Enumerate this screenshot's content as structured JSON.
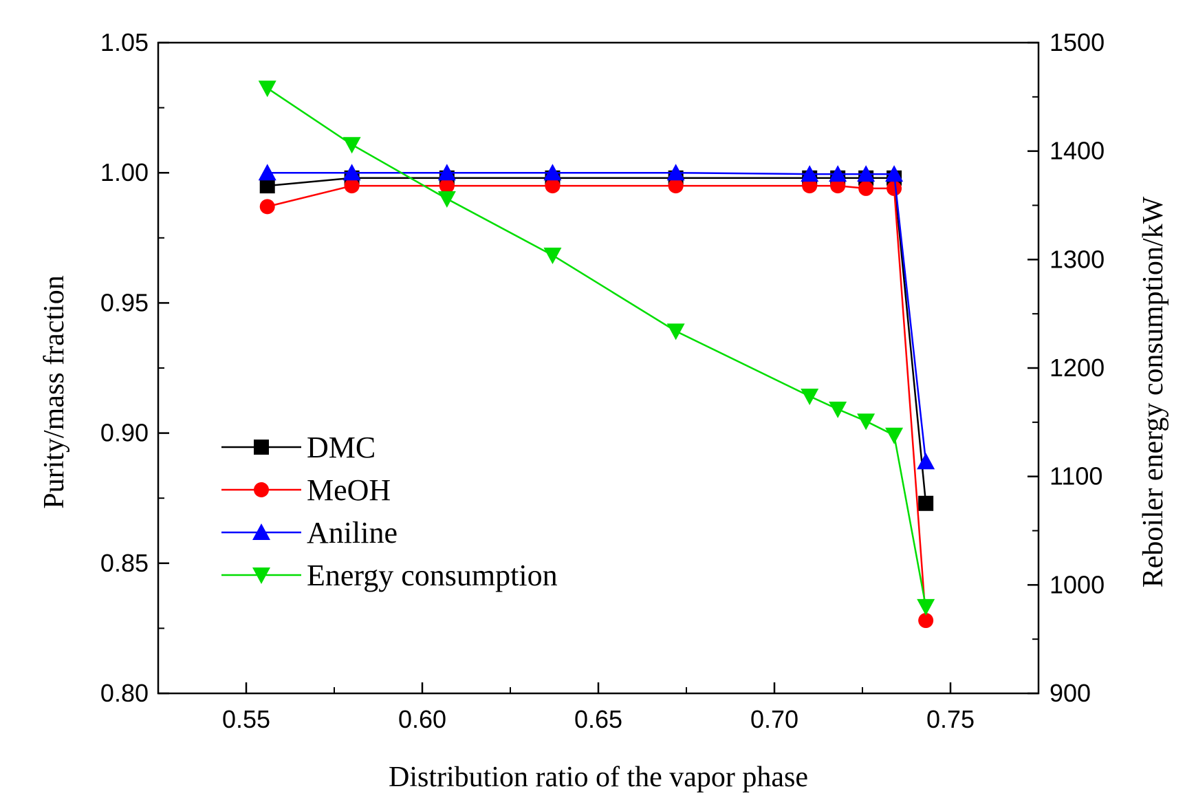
{
  "chart_data": {
    "type": "line",
    "title": "",
    "xlabel": "Distribution ratio of the vapor phase",
    "ylabel": "Purity/mass fraction",
    "y2label": "Reboiler energy consumption/kW",
    "xlim": [
      0.525,
      0.775
    ],
    "ylim": [
      0.8,
      1.05
    ],
    "y2lim": [
      900,
      1500
    ],
    "x_ticks": [
      0.55,
      0.6,
      0.65,
      0.7,
      0.75
    ],
    "x_tick_labels": [
      "0.55",
      "0.60",
      "0.65",
      "0.70",
      "0.75"
    ],
    "y_ticks": [
      0.8,
      0.85,
      0.9,
      0.95,
      1.0,
      1.05
    ],
    "y_tick_labels": [
      "0.80",
      "0.85",
      "0.90",
      "0.95",
      "1.00",
      "1.05"
    ],
    "y2_ticks": [
      900,
      1000,
      1100,
      1200,
      1300,
      1400,
      1500
    ],
    "y2_tick_labels": [
      "900",
      "1000",
      "1100",
      "1200",
      "1300",
      "1400",
      "1500"
    ],
    "grid": false,
    "legend_position": "bottom-left",
    "series": [
      {
        "name": "DMC",
        "axis": "left",
        "color": "#000000",
        "marker": "square",
        "x": [
          0.556,
          0.58,
          0.607,
          0.637,
          0.672,
          0.71,
          0.718,
          0.726,
          0.734,
          0.743
        ],
        "y": [
          0.995,
          0.998,
          0.998,
          0.998,
          0.998,
          0.998,
          0.998,
          0.998,
          0.998,
          0.873
        ]
      },
      {
        "name": "MeOH",
        "axis": "left",
        "color": "#ff0000",
        "marker": "circle",
        "x": [
          0.556,
          0.58,
          0.607,
          0.637,
          0.672,
          0.71,
          0.718,
          0.726,
          0.734,
          0.743
        ],
        "y": [
          0.987,
          0.995,
          0.995,
          0.995,
          0.995,
          0.995,
          0.995,
          0.994,
          0.994,
          0.828
        ]
      },
      {
        "name": "Aniline",
        "axis": "left",
        "color": "#0000ff",
        "marker": "triangle-up",
        "x": [
          0.556,
          0.58,
          0.607,
          0.637,
          0.672,
          0.71,
          0.718,
          0.726,
          0.734,
          0.743
        ],
        "y": [
          1.0,
          1.0,
          1.0,
          1.0,
          1.0,
          0.9995,
          0.9995,
          0.9995,
          0.9995,
          0.889
        ]
      },
      {
        "name": "Energy consumption",
        "axis": "right",
        "color": "#00dd00",
        "marker": "triangle-down",
        "x": [
          0.556,
          0.58,
          0.607,
          0.637,
          0.672,
          0.71,
          0.718,
          0.726,
          0.734,
          0.743
        ],
        "y": [
          1458,
          1406,
          1356,
          1304,
          1234,
          1174,
          1162,
          1151,
          1138,
          980
        ]
      }
    ]
  }
}
